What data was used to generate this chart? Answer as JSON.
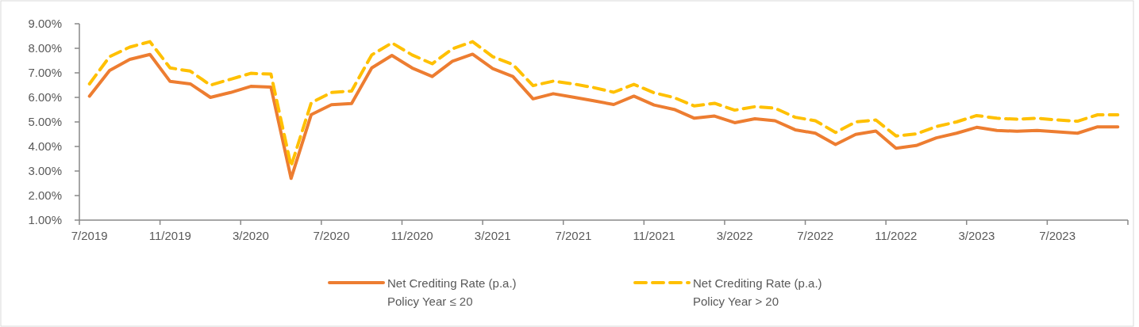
{
  "chart_data": {
    "type": "line",
    "categories": [
      "7/2019",
      null,
      null,
      null,
      "11/2019",
      null,
      null,
      null,
      "3/2020",
      null,
      null,
      null,
      "7/2020",
      null,
      null,
      null,
      "11/2020",
      null,
      null,
      null,
      "3/2021",
      null,
      null,
      null,
      "7/2021",
      null,
      null,
      null,
      "11/2021",
      null,
      null,
      null,
      "3/2022",
      null,
      null,
      null,
      "7/2022",
      null,
      null,
      null,
      "11/2022",
      null,
      null,
      null,
      "3/2023",
      null,
      null,
      null,
      "7/2023",
      null,
      null,
      null
    ],
    "series": [
      {
        "name": "Net Crediting Rate (p.a.)\nPolicy Year ≤ 20",
        "color": "#ed7d31",
        "line_style": "solid",
        "values": [
          6.05,
          7.1,
          7.55,
          7.75,
          6.65,
          6.55,
          6.0,
          6.2,
          6.45,
          6.42,
          2.7,
          5.3,
          5.7,
          5.75,
          7.2,
          7.71,
          7.2,
          6.85,
          7.47,
          7.76,
          7.17,
          6.85,
          5.94,
          6.15,
          6.01,
          5.86,
          5.71,
          6.05,
          5.69,
          5.51,
          5.15,
          5.24,
          4.97,
          5.13,
          5.05,
          4.68,
          4.54,
          4.08,
          4.49,
          4.63,
          3.93,
          4.04,
          4.35,
          4.54,
          4.78,
          4.65,
          4.62,
          4.65,
          4.6,
          4.54,
          4.8,
          4.8
        ]
      },
      {
        "name": "Net Crediting Rate (p.a.)\nPolicy Year > 20",
        "color": "#ffc000",
        "line_style": "dashed",
        "values": [
          6.55,
          7.66,
          8.05,
          8.27,
          7.2,
          7.07,
          6.5,
          6.74,
          6.98,
          6.95,
          3.2,
          5.78,
          6.2,
          6.26,
          7.73,
          8.22,
          7.73,
          7.37,
          7.98,
          8.27,
          7.66,
          7.34,
          6.48,
          6.66,
          6.55,
          6.4,
          6.21,
          6.53,
          6.19,
          5.99,
          5.65,
          5.76,
          5.48,
          5.62,
          5.56,
          5.19,
          5.05,
          4.57,
          5.0,
          5.08,
          4.43,
          4.51,
          4.81,
          5.0,
          5.26,
          5.15,
          5.11,
          5.15,
          5.08,
          5.03,
          5.29,
          5.29
        ]
      }
    ],
    "ylim": [
      1,
      9
    ],
    "yticks": [
      {
        "value": 1,
        "label": "1.00%"
      },
      {
        "value": 2,
        "label": "2.00%"
      },
      {
        "value": 3,
        "label": "3.00%"
      },
      {
        "value": 4,
        "label": "4.00%"
      },
      {
        "value": 5,
        "label": "5.00%"
      },
      {
        "value": 6,
        "label": "6.00%"
      },
      {
        "value": 7,
        "label": "7.00%"
      },
      {
        "value": 8,
        "label": "8.00%"
      },
      {
        "value": 9,
        "label": "9.00%"
      }
    ],
    "grid": false,
    "legend": "bottom"
  }
}
